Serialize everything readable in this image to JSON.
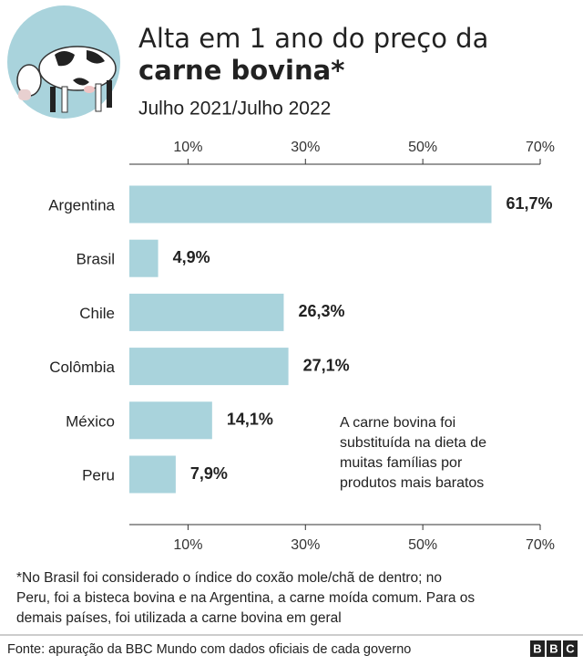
{
  "header": {
    "title": [
      "Alta em 1 ano do preço da",
      "carne bovina*"
    ],
    "subtitle": "Julho 2021/Julho 2022"
  },
  "chart_data": {
    "type": "bar",
    "orientation": "horizontal",
    "categories": [
      "Argentina",
      "Brasil",
      "Chile",
      "Colômbia",
      "México",
      "Peru"
    ],
    "values": [
      61.7,
      4.9,
      26.3,
      27.1,
      14.1,
      7.9
    ],
    "value_labels": [
      "61,7%",
      "4,9%",
      "26,3%",
      "27,1%",
      "14,1%",
      "7,9%"
    ],
    "color": "#a9d3dc",
    "xlim": [
      0,
      70
    ],
    "xticks": [
      {
        "value": 10,
        "label": "10%"
      },
      {
        "value": 30,
        "label": "30%"
      },
      {
        "value": 50,
        "label": "50%"
      },
      {
        "value": 70,
        "label": "70%"
      }
    ],
    "annotation": [
      "A carne bovina foi",
      "substituída na dieta de",
      "muitas famílias por",
      "produtos mais baratos"
    ]
  },
  "footnote": [
    "*No Brasil foi considerado o índice do coxão mole/chã de dentro; no",
    "Peru, foi a bisteca bovina e na Argentina, a carne moída comum. Para os",
    "demais países, foi utilizada a carne bovina em geral"
  ],
  "source": "Fonte: apuração da BBC Mundo com dados oficiais de cada governo",
  "logo": [
    "B",
    "B",
    "C"
  ]
}
